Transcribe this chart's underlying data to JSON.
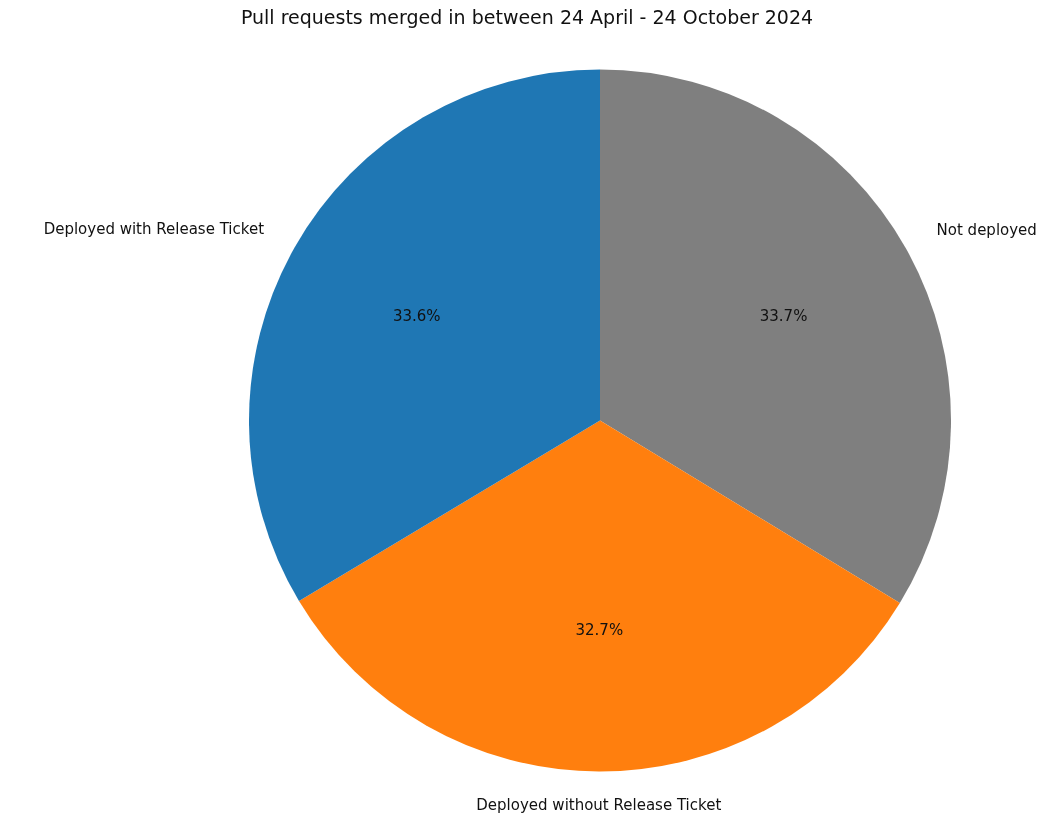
{
  "chart_data": {
    "type": "pie",
    "title": "Pull requests merged in between 24 April - 24 October 2024",
    "categories": [
      "Deployed with Release Ticket",
      "Deployed without Release Ticket",
      "Not deployed"
    ],
    "values": [
      33.6,
      32.7,
      33.7
    ],
    "colors": [
      "#1f77b4",
      "#ff7f0e",
      "#7f7f7f"
    ],
    "value_labels": [
      "33.6%",
      "32.7%",
      "33.7%"
    ],
    "legend": false
  }
}
